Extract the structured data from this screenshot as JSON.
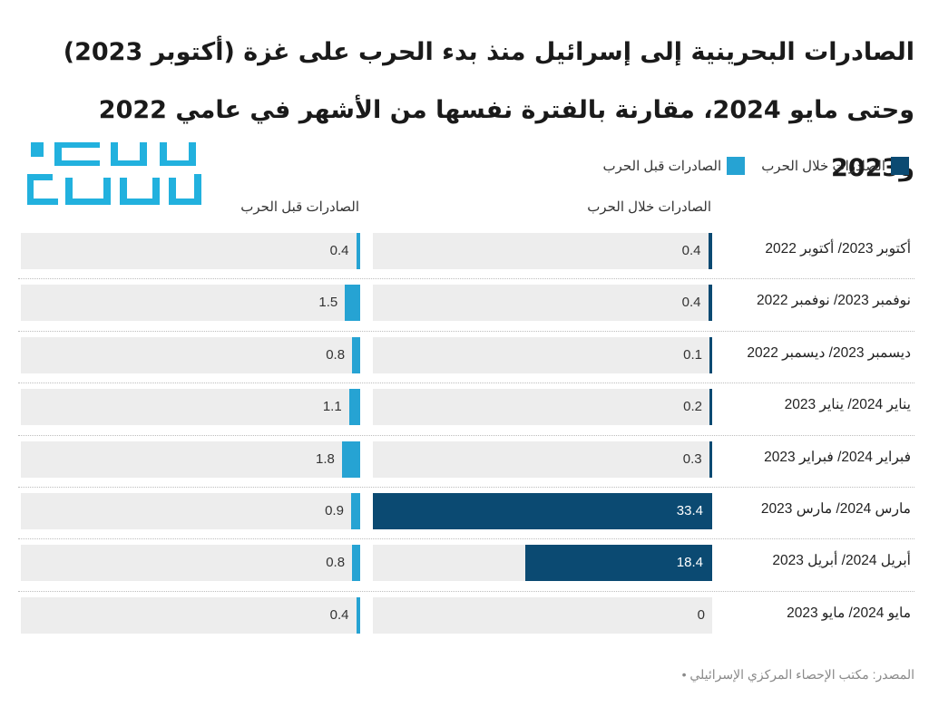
{
  "title": "الصادرات البحرينية إلى إسرائيل منذ بدء الحرب على غزة (أكتوبر 2023) وحتى مايو 2024، مقارنة بالفترة نفسها من الأشهر في عامي 2022 و2023",
  "logo": {
    "line1": "عربي",
    "line2": "بوست",
    "color": "#22b1de"
  },
  "legend": [
    {
      "label": "الصادرات خلال الحرب",
      "color": "#0b4a72"
    },
    {
      "label": "الصادرات قبل الحرب",
      "color": "#26a3d3"
    }
  ],
  "columns": {
    "during": "الصادرات خلال الحرب",
    "before": "الصادرات قبل الحرب"
  },
  "source": "المصدر: مكتب الإحصاء المركزي الإسرائيلي •",
  "chart_data": {
    "type": "bar",
    "categories": [
      "أكتوبر 2023/ أكتوبر 2022",
      "نوفمبر 2023/ نوفمبر 2022",
      "ديسمبر 2023/ ديسمبر 2022",
      "يناير 2024/ يناير 2023",
      "فبراير 2024/ فبراير 2023",
      "مارس 2024/ مارس 2023",
      "أبريل 2024/ أبريل 2023",
      "مايو 2024/ مايو 2023"
    ],
    "series": [
      {
        "name": "الصادرات خلال الحرب",
        "color": "#0b4a72",
        "values": [
          0.4,
          0.4,
          0.1,
          0.2,
          0.3,
          33.4,
          18.4,
          0
        ]
      },
      {
        "name": "الصادرات قبل الحرب",
        "color": "#26a3d3",
        "values": [
          0.4,
          1.5,
          0.8,
          1.1,
          1.8,
          0.9,
          0.8,
          0.4
        ]
      }
    ],
    "xlim": [
      0,
      33.4
    ]
  }
}
